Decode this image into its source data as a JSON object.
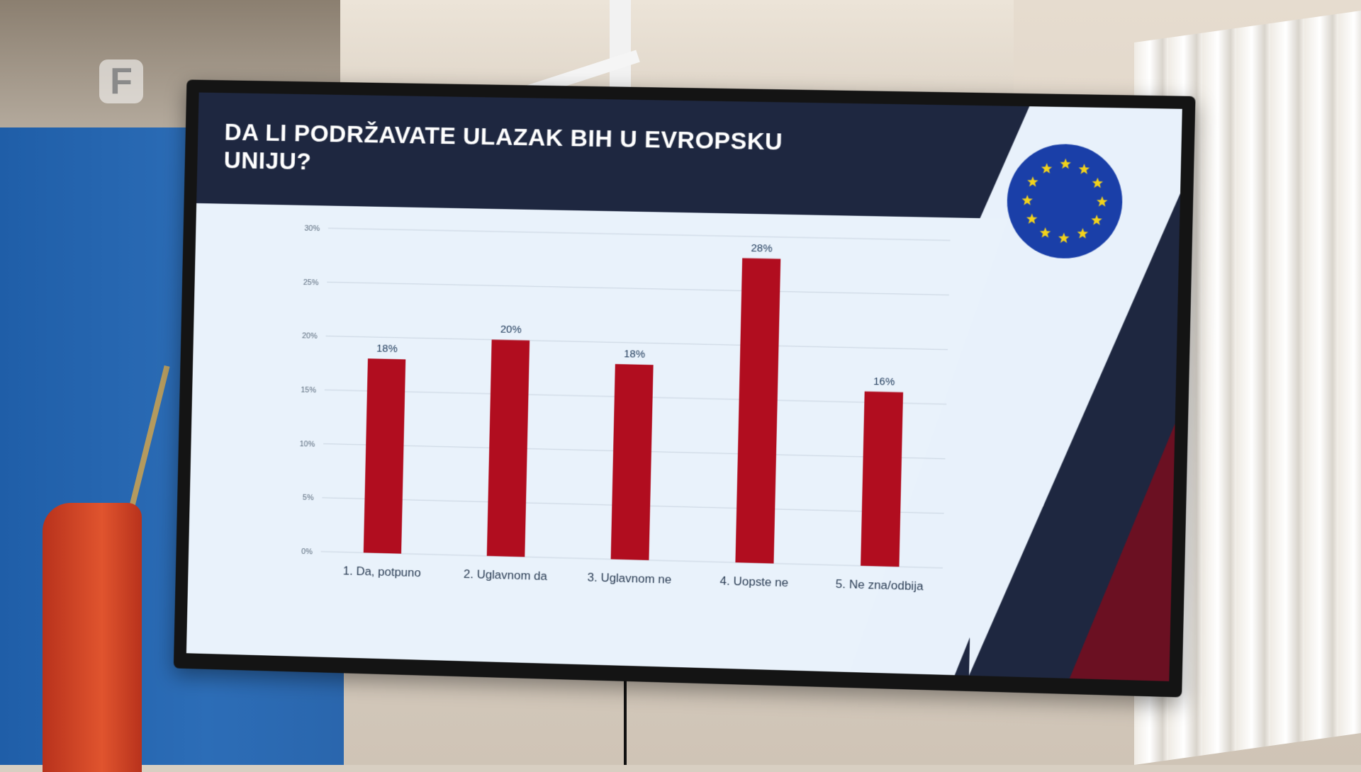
{
  "logo_letter": "F",
  "slide": {
    "title_line1": "DA LI PODRŽAVATE ULAZAK BIH U EVROPSKU",
    "title_line2": "UNIJU?"
  },
  "colors": {
    "bar": "#b10d1f",
    "title_band": "#1e2740",
    "eu_blue": "#1a3fa8",
    "eu_star": "#f2d21b"
  },
  "chart_data": {
    "type": "bar",
    "categories": [
      "1. Da, potpuno",
      "2. Uglavnom da",
      "3. Uglavnom ne",
      "4. Uopste ne",
      "5. Ne zna/odbija"
    ],
    "values": [
      18,
      20,
      18,
      28,
      16
    ],
    "value_labels": [
      "18%",
      "20%",
      "18%",
      "28%",
      "16%"
    ],
    "yticks": [
      "0%",
      "5%",
      "10%",
      "15%",
      "20%",
      "25%",
      "30%"
    ],
    "ylim": [
      0,
      30
    ],
    "grid": true,
    "legend": "none"
  }
}
